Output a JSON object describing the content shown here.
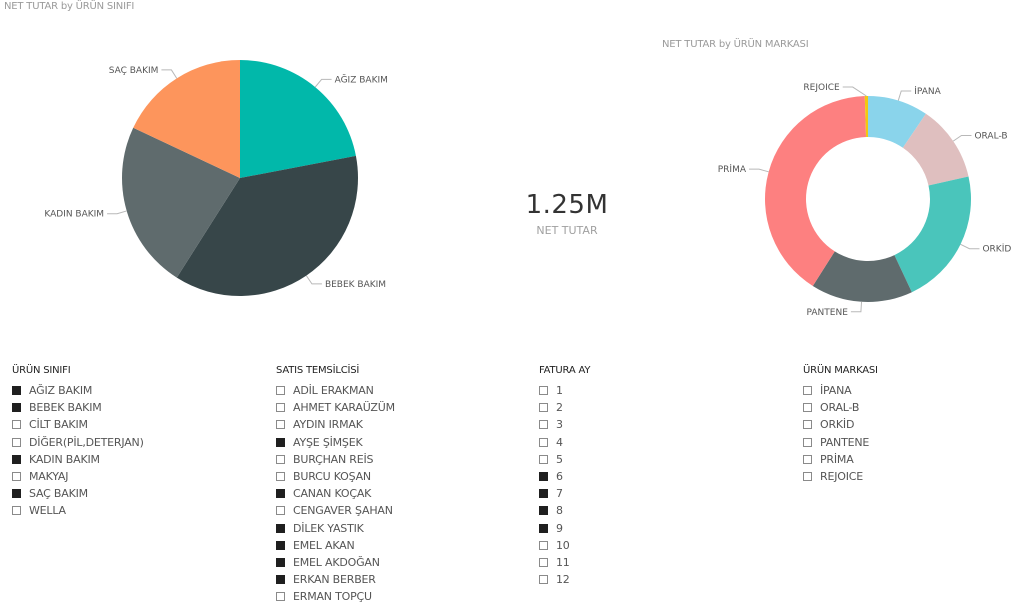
{
  "chart_data": [
    {
      "type": "pie",
      "title": "NET TUTAR by ÜRÜN SINIFI",
      "categories": [
        "AĞIZ BAKIM",
        "BEBEK BAKIM",
        "KADIN BAKIM",
        "SAÇ BAKIM"
      ],
      "values": [
        22,
        37,
        23,
        18
      ],
      "colors": [
        "#01B8AA",
        "#374649",
        "#5F6B6D",
        "#FD955C"
      ]
    },
    {
      "type": "donut",
      "title": "NET TUTAR by ÜRÜN MARKASI",
      "categories": [
        "İPANA",
        "ORAL-B",
        "ORKİD",
        "PANTENE",
        "PRİMA",
        "REJOICE"
      ],
      "values": [
        9.5,
        12,
        21.5,
        16,
        40.5,
        0.5
      ],
      "colors": [
        "#8AD4EB",
        "#DFBFBF",
        "#4AC5BB",
        "#5F6B6D",
        "#FD8080",
        "#F2C80F"
      ]
    }
  ],
  "card": {
    "value": "1.25M",
    "label": "NET TUTAR"
  },
  "slicers": [
    {
      "title": "ÜRÜN SINIFI",
      "items": [
        {
          "label": "AĞIZ BAKIM",
          "checked": true
        },
        {
          "label": "BEBEK BAKIM",
          "checked": true
        },
        {
          "label": "CİLT BAKIM",
          "checked": false
        },
        {
          "label": "DİĞER(PİL,DETERJAN)",
          "checked": false
        },
        {
          "label": "KADIN BAKIM",
          "checked": true
        },
        {
          "label": "MAKYAJ",
          "checked": false
        },
        {
          "label": "SAÇ BAKIM",
          "checked": true
        },
        {
          "label": "WELLA",
          "checked": false
        }
      ]
    },
    {
      "title": "SATIS TEMSİLCİSİ",
      "items": [
        {
          "label": "ADİL ERAKMAN",
          "checked": false
        },
        {
          "label": "AHMET KARAÜZÜM",
          "checked": false
        },
        {
          "label": "AYDIN IRMAK",
          "checked": false
        },
        {
          "label": "AYŞE ŞİMŞEK",
          "checked": true
        },
        {
          "label": "BURÇHAN REİS",
          "checked": false
        },
        {
          "label": "BURCU KOŞAN",
          "checked": false
        },
        {
          "label": "CANAN KOÇAK",
          "checked": true
        },
        {
          "label": "CENGAVER ŞAHAN",
          "checked": false
        },
        {
          "label": "DİLEK YASTIK",
          "checked": true
        },
        {
          "label": "EMEL AKAN",
          "checked": true
        },
        {
          "label": "EMEL AKDOĞAN",
          "checked": true
        },
        {
          "label": "ERKAN BERBER",
          "checked": true
        },
        {
          "label": "ERMAN TOPÇU",
          "checked": false
        }
      ]
    },
    {
      "title": "FATURA AY",
      "items": [
        {
          "label": "1",
          "checked": false
        },
        {
          "label": "2",
          "checked": false
        },
        {
          "label": "3",
          "checked": false
        },
        {
          "label": "4",
          "checked": false
        },
        {
          "label": "5",
          "checked": false
        },
        {
          "label": "6",
          "checked": true
        },
        {
          "label": "7",
          "checked": true
        },
        {
          "label": "8",
          "checked": true
        },
        {
          "label": "9",
          "checked": true
        },
        {
          "label": "10",
          "checked": false
        },
        {
          "label": "11",
          "checked": false
        },
        {
          "label": "12",
          "checked": false
        }
      ]
    },
    {
      "title": "ÜRÜN MARKASI",
      "items": [
        {
          "label": "İPANA",
          "checked": false
        },
        {
          "label": "ORAL-B",
          "checked": false
        },
        {
          "label": "ORKİD",
          "checked": false
        },
        {
          "label": "PANTENE",
          "checked": false
        },
        {
          "label": "PRİMA",
          "checked": false
        },
        {
          "label": "REJOICE",
          "checked": false
        }
      ]
    }
  ]
}
